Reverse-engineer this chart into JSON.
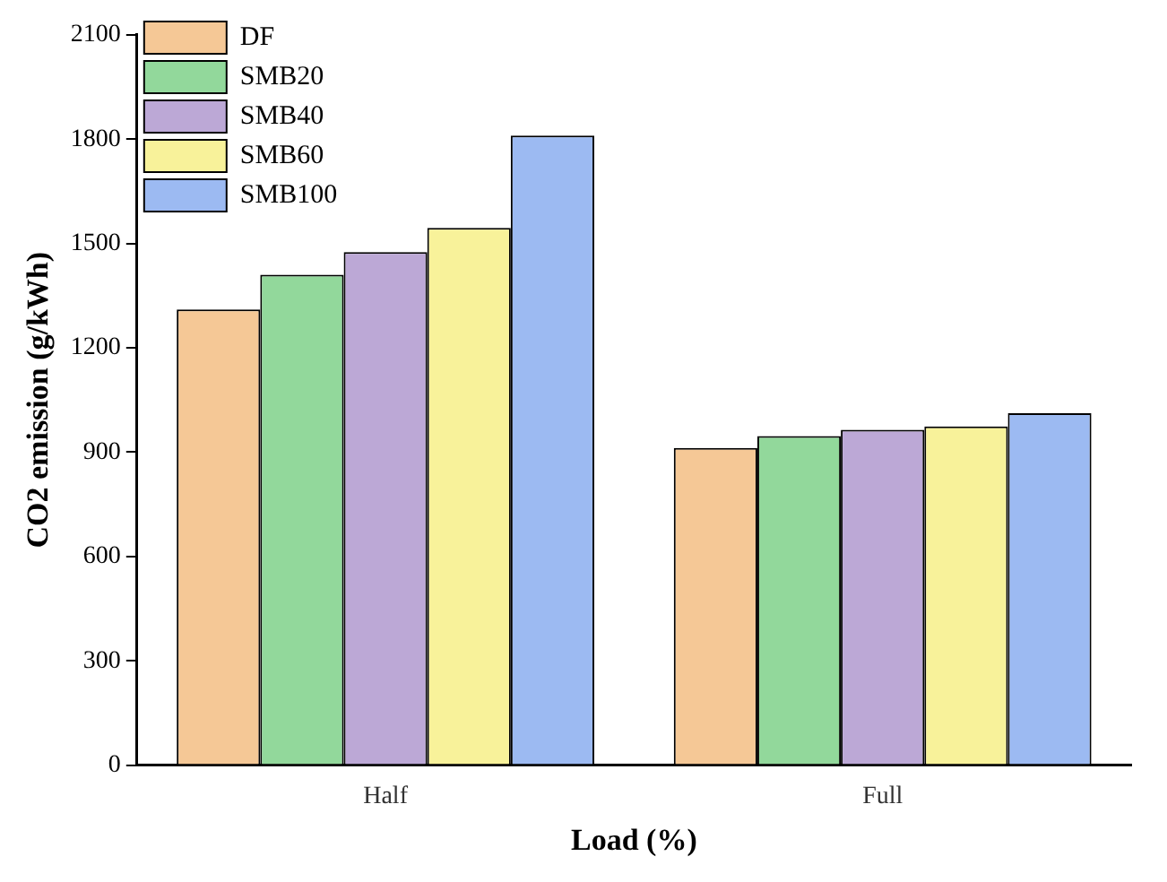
{
  "chart_data": {
    "type": "bar",
    "categories": [
      "Half",
      "Full"
    ],
    "xlabel": "Load (%)",
    "ylabel": "CO2 emission (g/kWh)",
    "ylim": [
      0,
      2100
    ],
    "yticks": [
      0,
      300,
      600,
      900,
      1200,
      1500,
      1800,
      2100
    ],
    "grid": false,
    "legend": "top left",
    "series": [
      {
        "name": "DF",
        "color": "#f5c896",
        "values": [
          1310,
          912
        ]
      },
      {
        "name": "SMB20",
        "color": "#92d89b",
        "values": [
          1410,
          946
        ]
      },
      {
        "name": "SMB40",
        "color": "#bca8d6",
        "values": [
          1475,
          964
        ]
      },
      {
        "name": "SMB60",
        "color": "#f8f29a",
        "values": [
          1545,
          974
        ]
      },
      {
        "name": "SMB100",
        "color": "#9cbaf2",
        "values": [
          1810,
          1012
        ]
      }
    ]
  }
}
